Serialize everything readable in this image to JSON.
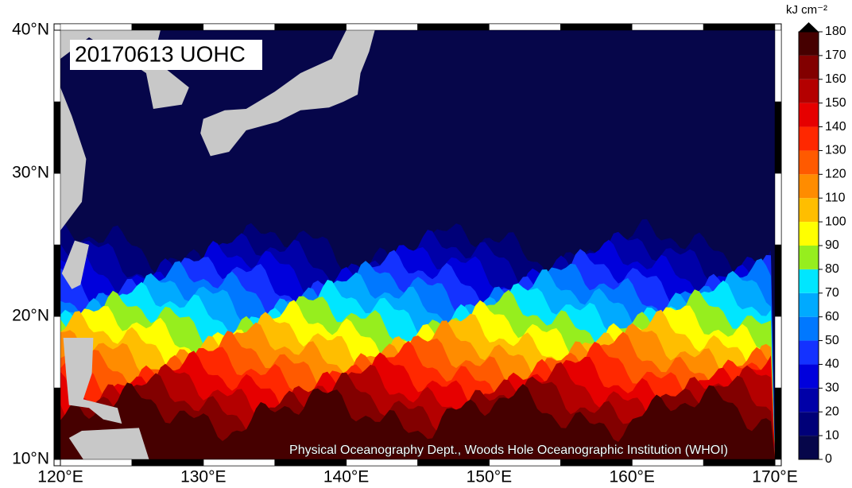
{
  "map": {
    "title": "20170613 UOHC",
    "credit": "Physical Oceanography Dept., Woods Hole Oceanographic Institution (WHOI)",
    "xlim": [
      120,
      170
    ],
    "ylim": [
      10,
      40
    ],
    "xticks": [
      {
        "value": 120,
        "label": "120°E"
      },
      {
        "value": 130,
        "label": "130°E"
      },
      {
        "value": 140,
        "label": "140°E"
      },
      {
        "value": 150,
        "label": "150°E"
      },
      {
        "value": 160,
        "label": "160°E"
      },
      {
        "value": 170,
        "label": "170°E"
      }
    ],
    "yticks": [
      {
        "value": 10,
        "label": "10°N"
      },
      {
        "value": 20,
        "label": "20°N"
      },
      {
        "value": 30,
        "label": "30°N"
      },
      {
        "value": 40,
        "label": "40°N"
      }
    ],
    "land_color": "#c8c8c8"
  },
  "colorbar": {
    "unit": "kJ cm⁻²",
    "ticks": [
      0,
      10,
      20,
      30,
      40,
      50,
      60,
      70,
      80,
      90,
      100,
      110,
      120,
      130,
      140,
      150,
      160,
      170,
      180
    ],
    "colors": [
      "#06064a",
      "#000078",
      "#0000a8",
      "#0000dc",
      "#1432ff",
      "#0078ff",
      "#00aaff",
      "#00e6ff",
      "#96ee1e",
      "#ffff00",
      "#ffbe00",
      "#ff8c00",
      "#ff5a00",
      "#ff2800",
      "#e60000",
      "#b40000",
      "#820000",
      "#460000"
    ],
    "extend_color": "#000000"
  }
}
